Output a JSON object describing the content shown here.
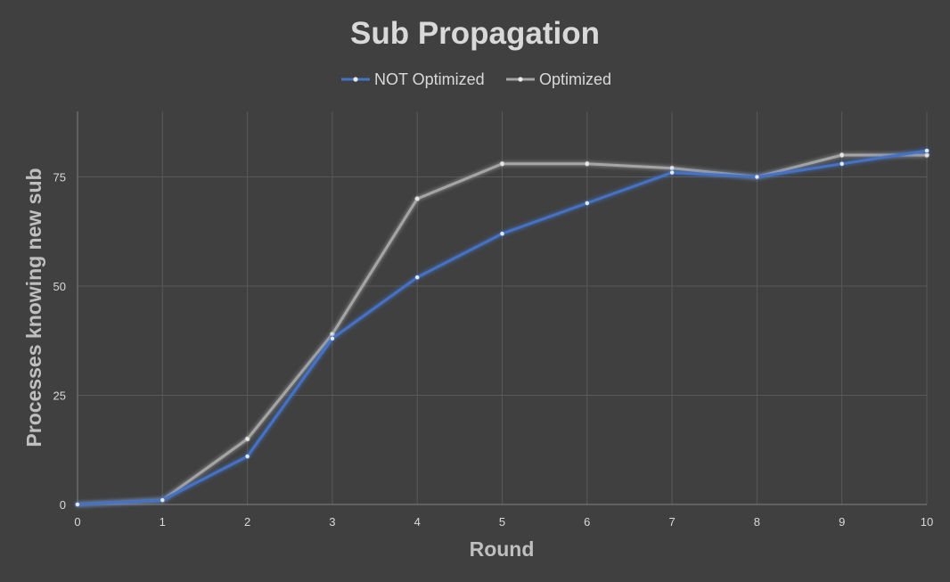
{
  "chart_data": {
    "type": "line",
    "title": "Sub Propagation",
    "xlabel": "Round",
    "ylabel": "Processes knowing new sub",
    "x": [
      0,
      1,
      2,
      3,
      4,
      5,
      6,
      7,
      8,
      9,
      10
    ],
    "xlim": [
      0,
      10
    ],
    "ylim": [
      0,
      90
    ],
    "yticks": [
      0,
      25,
      50,
      75
    ],
    "grid": true,
    "legend_position": "top",
    "series": [
      {
        "name": "NOT Optimized",
        "color": "#4472c4",
        "values": [
          0,
          1,
          11,
          38,
          52,
          62,
          69,
          76,
          75,
          78,
          81
        ]
      },
      {
        "name": "Optimized",
        "color": "#a5a5a5",
        "values": [
          0,
          1,
          15,
          39,
          70,
          78,
          78,
          77,
          75,
          80,
          80
        ]
      }
    ]
  }
}
